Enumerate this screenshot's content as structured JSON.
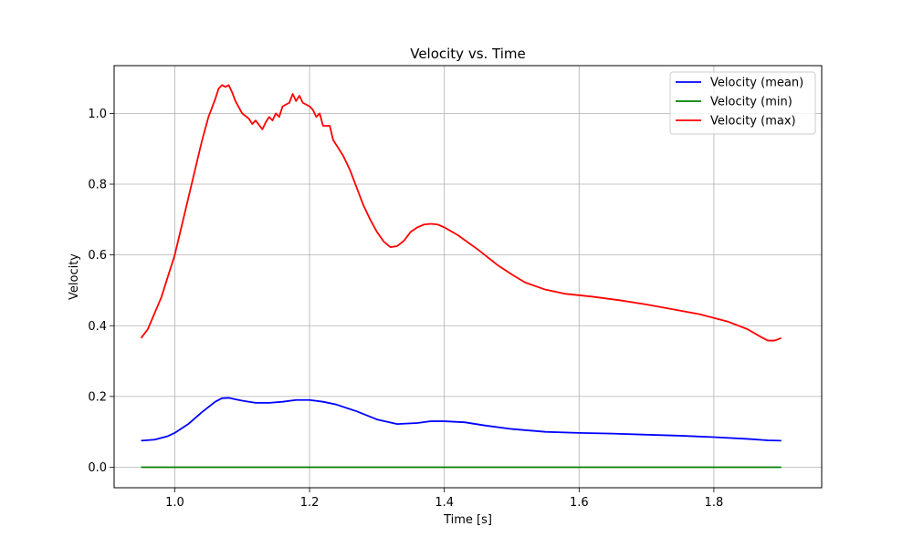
{
  "chart_data": {
    "type": "line",
    "title": "Velocity vs. Time",
    "xlabel": "Time [s]",
    "ylabel": "Velocity",
    "xlim": [
      0.91,
      1.96
    ],
    "ylim": [
      -0.058,
      1.135
    ],
    "xticks": [
      1.0,
      1.2,
      1.4,
      1.6,
      1.8
    ],
    "xtick_labels": [
      "1.0",
      "1.2",
      "1.4",
      "1.6",
      "1.8"
    ],
    "yticks": [
      0.0,
      0.2,
      0.4,
      0.6,
      0.8,
      1.0
    ],
    "ytick_labels": [
      "0.0",
      "0.2",
      "0.4",
      "0.6",
      "0.8",
      "1.0"
    ],
    "grid": true,
    "legend_position": "top-right",
    "series": [
      {
        "name": "Velocity (mean)",
        "color": "#0000ff",
        "points": [
          [
            0.95,
            0.075
          ],
          [
            0.97,
            0.078
          ],
          [
            0.99,
            0.088
          ],
          [
            1.0,
            0.097
          ],
          [
            1.02,
            0.122
          ],
          [
            1.04,
            0.155
          ],
          [
            1.06,
            0.185
          ],
          [
            1.07,
            0.195
          ],
          [
            1.08,
            0.196
          ],
          [
            1.09,
            0.192
          ],
          [
            1.1,
            0.188
          ],
          [
            1.12,
            0.182
          ],
          [
            1.14,
            0.182
          ],
          [
            1.16,
            0.185
          ],
          [
            1.18,
            0.19
          ],
          [
            1.2,
            0.19
          ],
          [
            1.22,
            0.185
          ],
          [
            1.24,
            0.177
          ],
          [
            1.27,
            0.158
          ],
          [
            1.3,
            0.135
          ],
          [
            1.33,
            0.122
          ],
          [
            1.36,
            0.125
          ],
          [
            1.38,
            0.13
          ],
          [
            1.4,
            0.13
          ],
          [
            1.43,
            0.127
          ],
          [
            1.46,
            0.118
          ],
          [
            1.5,
            0.108
          ],
          [
            1.55,
            0.1
          ],
          [
            1.6,
            0.097
          ],
          [
            1.65,
            0.095
          ],
          [
            1.7,
            0.092
          ],
          [
            1.75,
            0.089
          ],
          [
            1.8,
            0.085
          ],
          [
            1.85,
            0.08
          ],
          [
            1.88,
            0.076
          ],
          [
            1.9,
            0.075
          ]
        ]
      },
      {
        "name": "Velocity (min)",
        "color": "#008000",
        "points": [
          [
            0.95,
            0.0
          ],
          [
            1.9,
            0.0
          ]
        ]
      },
      {
        "name": "Velocity (max)",
        "color": "#ff0000",
        "points": [
          [
            0.95,
            0.365
          ],
          [
            0.96,
            0.39
          ],
          [
            0.98,
            0.48
          ],
          [
            1.0,
            0.6
          ],
          [
            1.02,
            0.76
          ],
          [
            1.04,
            0.92
          ],
          [
            1.05,
            0.99
          ],
          [
            1.06,
            1.04
          ],
          [
            1.065,
            1.07
          ],
          [
            1.07,
            1.08
          ],
          [
            1.075,
            1.075
          ],
          [
            1.08,
            1.08
          ],
          [
            1.085,
            1.06
          ],
          [
            1.09,
            1.035
          ],
          [
            1.1,
            1.0
          ],
          [
            1.11,
            0.985
          ],
          [
            1.115,
            0.97
          ],
          [
            1.12,
            0.98
          ],
          [
            1.13,
            0.955
          ],
          [
            1.135,
            0.975
          ],
          [
            1.14,
            0.99
          ],
          [
            1.145,
            0.98
          ],
          [
            1.15,
            1.0
          ],
          [
            1.155,
            0.99
          ],
          [
            1.16,
            1.02
          ],
          [
            1.17,
            1.03
          ],
          [
            1.175,
            1.055
          ],
          [
            1.18,
            1.035
          ],
          [
            1.185,
            1.05
          ],
          [
            1.19,
            1.03
          ],
          [
            1.2,
            1.02
          ],
          [
            1.205,
            1.01
          ],
          [
            1.21,
            0.99
          ],
          [
            1.215,
            1.0
          ],
          [
            1.22,
            0.965
          ],
          [
            1.23,
            0.965
          ],
          [
            1.235,
            0.925
          ],
          [
            1.24,
            0.91
          ],
          [
            1.25,
            0.88
          ],
          [
            1.26,
            0.84
          ],
          [
            1.27,
            0.79
          ],
          [
            1.28,
            0.74
          ],
          [
            1.29,
            0.7
          ],
          [
            1.3,
            0.665
          ],
          [
            1.31,
            0.638
          ],
          [
            1.32,
            0.622
          ],
          [
            1.33,
            0.625
          ],
          [
            1.34,
            0.64
          ],
          [
            1.35,
            0.665
          ],
          [
            1.36,
            0.678
          ],
          [
            1.37,
            0.686
          ],
          [
            1.38,
            0.688
          ],
          [
            1.39,
            0.686
          ],
          [
            1.4,
            0.678
          ],
          [
            1.42,
            0.656
          ],
          [
            1.45,
            0.615
          ],
          [
            1.48,
            0.57
          ],
          [
            1.5,
            0.545
          ],
          [
            1.52,
            0.522
          ],
          [
            1.55,
            0.502
          ],
          [
            1.58,
            0.49
          ],
          [
            1.62,
            0.482
          ],
          [
            1.66,
            0.472
          ],
          [
            1.7,
            0.46
          ],
          [
            1.74,
            0.446
          ],
          [
            1.78,
            0.432
          ],
          [
            1.82,
            0.412
          ],
          [
            1.85,
            0.39
          ],
          [
            1.87,
            0.368
          ],
          [
            1.88,
            0.358
          ],
          [
            1.89,
            0.358
          ],
          [
            1.9,
            0.365
          ]
        ]
      }
    ]
  }
}
